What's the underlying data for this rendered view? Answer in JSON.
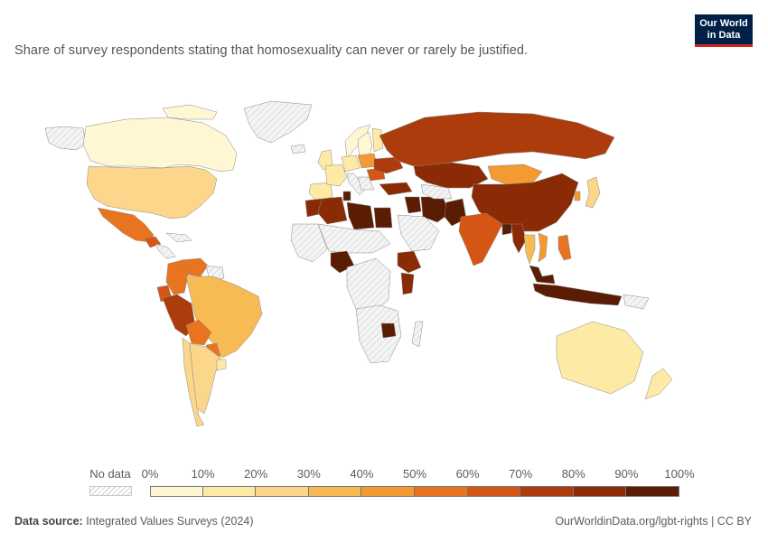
{
  "header": {
    "subtitle": "Share of survey respondents stating that homosexuality can never or rarely be justified.",
    "logo_line1": "Our World",
    "logo_line2": "in Data"
  },
  "legend": {
    "no_data_label": "No data",
    "ticks": [
      "0%",
      "10%",
      "20%",
      "30%",
      "40%",
      "50%",
      "60%",
      "70%",
      "80%",
      "90%",
      "100%"
    ],
    "colors": [
      "#fff6d4",
      "#fdeaa4",
      "#fbd68b",
      "#f8bb54",
      "#f39a32",
      "#e87420",
      "#d55514",
      "#ad3c0c",
      "#8a2b05",
      "#5a1c03"
    ],
    "no_data_color": "#e8e8e8"
  },
  "footer": {
    "source_label": "Data source:",
    "source_text": "Integrated Values Surveys (2024)",
    "credit": "OurWorldinData.org/lgbt-rights | CC BY"
  },
  "chart_data": {
    "type": "choropleth",
    "units": "%",
    "scale": [
      0,
      100
    ],
    "regions": [
      {
        "name": "Canada",
        "value": 8
      },
      {
        "name": "United States",
        "value": 24
      },
      {
        "name": "Mexico",
        "value": 52
      },
      {
        "name": "Guatemala",
        "value": 62
      },
      {
        "name": "Colombia",
        "value": 55
      },
      {
        "name": "Venezuela",
        "value": 55
      },
      {
        "name": "Ecuador",
        "value": 68
      },
      {
        "name": "Peru",
        "value": 72
      },
      {
        "name": "Bolivia",
        "value": 58
      },
      {
        "name": "Brazil",
        "value": 35
      },
      {
        "name": "Argentina",
        "value": 22
      },
      {
        "name": "Chile",
        "value": 25
      },
      {
        "name": "Uruguay",
        "value": 15
      },
      {
        "name": "Paraguay",
        "value": 55
      },
      {
        "name": "Spain",
        "value": 12
      },
      {
        "name": "France",
        "value": 15
      },
      {
        "name": "Germany",
        "value": 12
      },
      {
        "name": "United Kingdom",
        "value": 10
      },
      {
        "name": "Norway",
        "value": 8
      },
      {
        "name": "Sweden",
        "value": 6
      },
      {
        "name": "Finland",
        "value": 15
      },
      {
        "name": "Poland",
        "value": 45
      },
      {
        "name": "Ukraine",
        "value": 70
      },
      {
        "name": "Romania",
        "value": 65
      },
      {
        "name": "Russia",
        "value": 77
      },
      {
        "name": "Kazakhstan",
        "value": 80
      },
      {
        "name": "Mongolia",
        "value": 48
      },
      {
        "name": "China",
        "value": 80
      },
      {
        "name": "Japan",
        "value": 22
      },
      {
        "name": "South Korea",
        "value": 48
      },
      {
        "name": "Turkey",
        "value": 87
      },
      {
        "name": "Iran",
        "value": 90
      },
      {
        "name": "Iraq",
        "value": 95
      },
      {
        "name": "Pakistan",
        "value": 93
      },
      {
        "name": "India",
        "value": 65
      },
      {
        "name": "Bangladesh",
        "value": 90
      },
      {
        "name": "Myanmar",
        "value": 80
      },
      {
        "name": "Thailand",
        "value": 35
      },
      {
        "name": "Vietnam",
        "value": 48
      },
      {
        "name": "Philippines",
        "value": 52
      },
      {
        "name": "Malaysia",
        "value": 90
      },
      {
        "name": "Indonesia",
        "value": 93
      },
      {
        "name": "Morocco",
        "value": 85
      },
      {
        "name": "Algeria",
        "value": 85
      },
      {
        "name": "Tunisia",
        "value": 90
      },
      {
        "name": "Libya",
        "value": 95
      },
      {
        "name": "Egypt",
        "value": 98
      },
      {
        "name": "Nigeria",
        "value": 93
      },
      {
        "name": "Ethiopia",
        "value": 85
      },
      {
        "name": "Kenya",
        "value": 80
      },
      {
        "name": "Zimbabwe",
        "value": 93
      },
      {
        "name": "Australia",
        "value": 10
      },
      {
        "name": "New Zealand",
        "value": 10
      }
    ]
  }
}
